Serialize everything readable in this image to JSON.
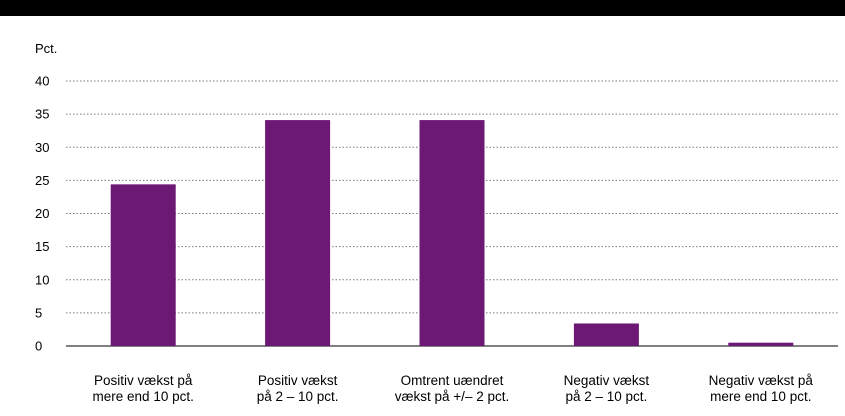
{
  "chart_data": {
    "type": "bar",
    "ylabel": "Pct.",
    "ylim": [
      0,
      40
    ],
    "yticks": [
      0,
      5,
      10,
      15,
      20,
      25,
      30,
      35,
      40
    ],
    "grid": true,
    "categories": [
      [
        "Positiv vækst på",
        "mere end 10 pct."
      ],
      [
        "Positiv vækst",
        "på 2 – 10 pct."
      ],
      [
        "Omtrent uændret",
        "vækst på +/– 2 pct."
      ],
      [
        "Negativ vækst",
        "på 2 – 10 pct."
      ],
      [
        "Negativ vækst på",
        "mere end 10 pct."
      ]
    ],
    "values": [
      24.4,
      34.1,
      34.1,
      3.4,
      0.5
    ],
    "colors": {
      "bar": "#6d1875",
      "grid": "#7a7a7a",
      "axis": "#000000"
    }
  }
}
